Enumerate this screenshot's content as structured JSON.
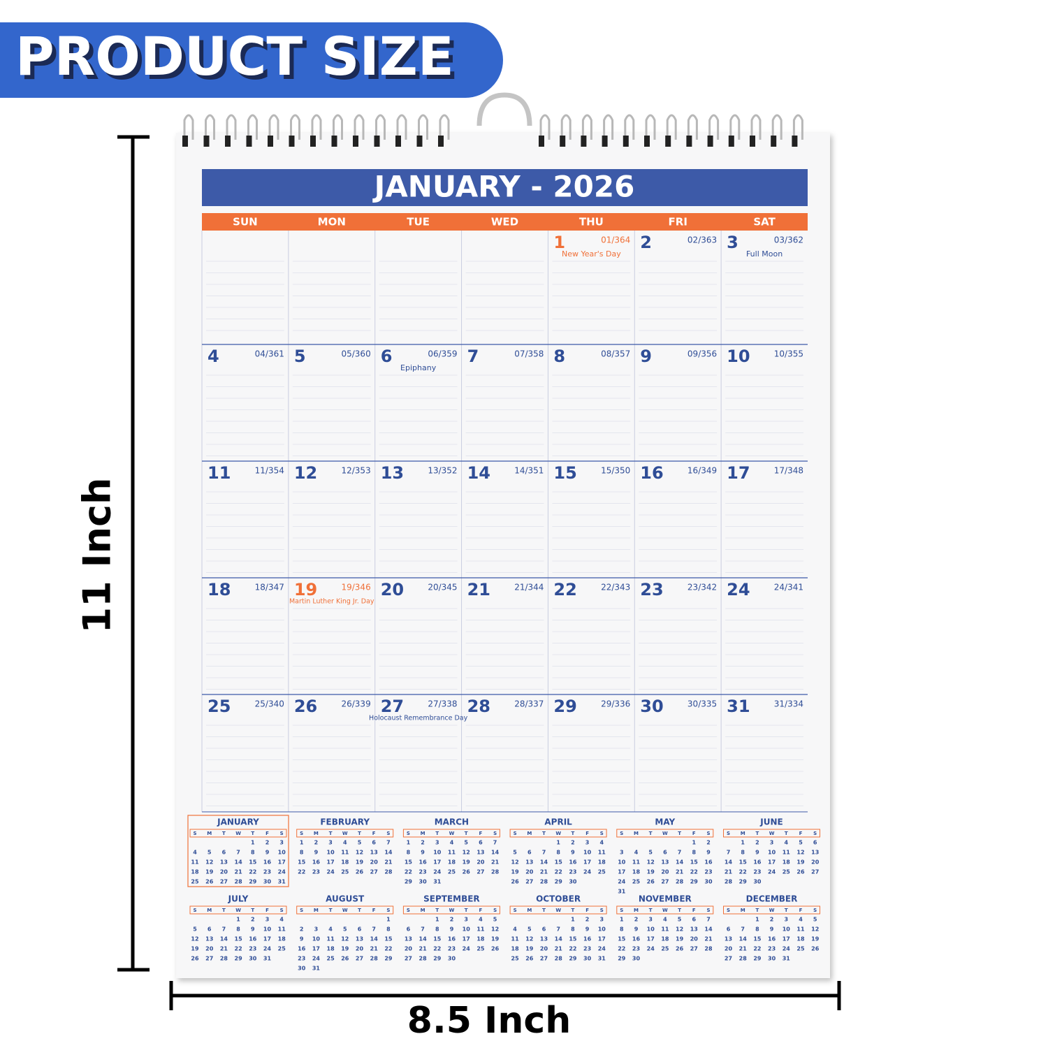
{
  "banner": "PRODUCT SIZE",
  "height_label": "11 Inch",
  "width_label": "8.5 Inch",
  "calendar": {
    "title": "JANUARY - 2026",
    "weekdays": [
      "SUN",
      "MON",
      "TUE",
      "WED",
      "THU",
      "FRI",
      "SAT"
    ],
    "weeks": [
      [
        null,
        null,
        null,
        null,
        {
          "day": 1,
          "day_of_year": "01/364",
          "note": "New Year's Day",
          "holiday": true
        },
        {
          "day": 2,
          "day_of_year": "02/363"
        },
        {
          "day": 3,
          "day_of_year": "03/362",
          "note": "Full Moon"
        }
      ],
      [
        {
          "day": 4,
          "day_of_year": "04/361"
        },
        {
          "day": 5,
          "day_of_year": "05/360"
        },
        {
          "day": 6,
          "day_of_year": "06/359",
          "note": "Epiphany"
        },
        {
          "day": 7,
          "day_of_year": "07/358"
        },
        {
          "day": 8,
          "day_of_year": "08/357"
        },
        {
          "day": 9,
          "day_of_year": "09/356"
        },
        {
          "day": 10,
          "day_of_year": "10/355"
        }
      ],
      [
        {
          "day": 11,
          "day_of_year": "11/354"
        },
        {
          "day": 12,
          "day_of_year": "12/353"
        },
        {
          "day": 13,
          "day_of_year": "13/352"
        },
        {
          "day": 14,
          "day_of_year": "14/351"
        },
        {
          "day": 15,
          "day_of_year": "15/350"
        },
        {
          "day": 16,
          "day_of_year": "16/349"
        },
        {
          "day": 17,
          "day_of_year": "17/348"
        }
      ],
      [
        {
          "day": 18,
          "day_of_year": "18/347"
        },
        {
          "day": 19,
          "day_of_year": "19/346",
          "note": "Martin Luther King Jr. Day",
          "holiday": true
        },
        {
          "day": 20,
          "day_of_year": "20/345"
        },
        {
          "day": 21,
          "day_of_year": "21/344"
        },
        {
          "day": 22,
          "day_of_year": "22/343"
        },
        {
          "day": 23,
          "day_of_year": "23/342"
        },
        {
          "day": 24,
          "day_of_year": "24/341"
        }
      ],
      [
        {
          "day": 25,
          "day_of_year": "25/340"
        },
        {
          "day": 26,
          "day_of_year": "26/339"
        },
        {
          "day": 27,
          "day_of_year": "27/338",
          "note": "Holocaust Remembrance Day"
        },
        {
          "day": 28,
          "day_of_year": "28/337"
        },
        {
          "day": 29,
          "day_of_year": "29/336"
        },
        {
          "day": 30,
          "day_of_year": "30/335"
        },
        {
          "day": 31,
          "day_of_year": "31/334"
        }
      ]
    ]
  },
  "year_overview": {
    "weekday_letters": [
      "S",
      "M",
      "T",
      "W",
      "T",
      "F",
      "S"
    ],
    "months": [
      {
        "name": "JANUARY",
        "current": true,
        "weeks": [
          [
            null,
            null,
            null,
            null,
            1,
            2,
            3
          ],
          [
            4,
            5,
            6,
            7,
            8,
            9,
            10
          ],
          [
            11,
            12,
            13,
            14,
            15,
            16,
            17
          ],
          [
            18,
            19,
            20,
            21,
            22,
            23,
            24
          ],
          [
            25,
            26,
            27,
            28,
            29,
            30,
            31
          ]
        ]
      },
      {
        "name": "FEBRUARY",
        "weeks": [
          [
            1,
            2,
            3,
            4,
            5,
            6,
            7
          ],
          [
            8,
            9,
            10,
            11,
            12,
            13,
            14
          ],
          [
            15,
            16,
            17,
            18,
            19,
            20,
            21
          ],
          [
            22,
            23,
            24,
            25,
            26,
            27,
            28
          ]
        ]
      },
      {
        "name": "MARCH",
        "weeks": [
          [
            1,
            2,
            3,
            4,
            5,
            6,
            7
          ],
          [
            8,
            9,
            10,
            11,
            12,
            13,
            14
          ],
          [
            15,
            16,
            17,
            18,
            19,
            20,
            21
          ],
          [
            22,
            23,
            24,
            25,
            26,
            27,
            28
          ],
          [
            29,
            30,
            31
          ]
        ]
      },
      {
        "name": "APRIL",
        "weeks": [
          [
            null,
            null,
            null,
            1,
            2,
            3,
            4
          ],
          [
            5,
            6,
            7,
            8,
            9,
            10,
            11
          ],
          [
            12,
            13,
            14,
            15,
            16,
            17,
            18
          ],
          [
            19,
            20,
            21,
            22,
            23,
            24,
            25
          ],
          [
            26,
            27,
            28,
            29,
            30
          ]
        ]
      },
      {
        "name": "MAY",
        "weeks": [
          [
            null,
            null,
            null,
            null,
            null,
            1,
            2
          ],
          [
            3,
            4,
            5,
            6,
            7,
            8,
            9
          ],
          [
            10,
            11,
            12,
            13,
            14,
            15,
            16
          ],
          [
            17,
            18,
            19,
            20,
            21,
            22,
            23
          ],
          [
            24,
            25,
            26,
            27,
            28,
            29,
            30
          ],
          [
            31
          ]
        ]
      },
      {
        "name": "JUNE",
        "weeks": [
          [
            null,
            1,
            2,
            3,
            4,
            5,
            6
          ],
          [
            7,
            8,
            9,
            10,
            11,
            12,
            13
          ],
          [
            14,
            15,
            16,
            17,
            18,
            19,
            20
          ],
          [
            21,
            22,
            23,
            24,
            25,
            26,
            27
          ],
          [
            28,
            29,
            30
          ]
        ]
      },
      {
        "name": "JULY",
        "weeks": [
          [
            null,
            null,
            null,
            1,
            2,
            3,
            4
          ],
          [
            5,
            6,
            7,
            8,
            9,
            10,
            11
          ],
          [
            12,
            13,
            14,
            15,
            16,
            17,
            18
          ],
          [
            19,
            20,
            21,
            22,
            23,
            24,
            25
          ],
          [
            26,
            27,
            28,
            29,
            30,
            31
          ]
        ]
      },
      {
        "name": "AUGUST",
        "weeks": [
          [
            null,
            null,
            null,
            null,
            null,
            null,
            1
          ],
          [
            2,
            3,
            4,
            5,
            6,
            7,
            8
          ],
          [
            9,
            10,
            11,
            12,
            13,
            14,
            15
          ],
          [
            16,
            17,
            18,
            19,
            20,
            21,
            22
          ],
          [
            23,
            24,
            25,
            26,
            27,
            28,
            29
          ],
          [
            30,
            31
          ]
        ]
      },
      {
        "name": "SEPTEMBER",
        "weeks": [
          [
            null,
            null,
            1,
            2,
            3,
            4,
            5
          ],
          [
            6,
            7,
            8,
            9,
            10,
            11,
            12
          ],
          [
            13,
            14,
            15,
            16,
            17,
            18,
            19
          ],
          [
            20,
            21,
            22,
            23,
            24,
            25,
            26
          ],
          [
            27,
            28,
            29,
            30
          ]
        ]
      },
      {
        "name": "OCTOBER",
        "weeks": [
          [
            null,
            null,
            null,
            null,
            1,
            2,
            3
          ],
          [
            4,
            5,
            6,
            7,
            8,
            9,
            10
          ],
          [
            11,
            12,
            13,
            14,
            15,
            16,
            17
          ],
          [
            18,
            19,
            20,
            21,
            22,
            23,
            24
          ],
          [
            25,
            26,
            27,
            28,
            29,
            30,
            31
          ]
        ]
      },
      {
        "name": "NOVEMBER",
        "weeks": [
          [
            1,
            2,
            3,
            4,
            5,
            6,
            7
          ],
          [
            8,
            9,
            10,
            11,
            12,
            13,
            14
          ],
          [
            15,
            16,
            17,
            18,
            19,
            20,
            21
          ],
          [
            22,
            23,
            24,
            25,
            26,
            27,
            28
          ],
          [
            29,
            30
          ]
        ]
      },
      {
        "name": "DECEMBER",
        "weeks": [
          [
            null,
            null,
            1,
            2,
            3,
            4,
            5
          ],
          [
            6,
            7,
            8,
            9,
            10,
            11,
            12
          ],
          [
            13,
            14,
            15,
            16,
            17,
            18,
            19
          ],
          [
            20,
            21,
            22,
            23,
            24,
            25,
            26
          ],
          [
            27,
            28,
            29,
            30,
            31
          ]
        ]
      }
    ]
  }
}
